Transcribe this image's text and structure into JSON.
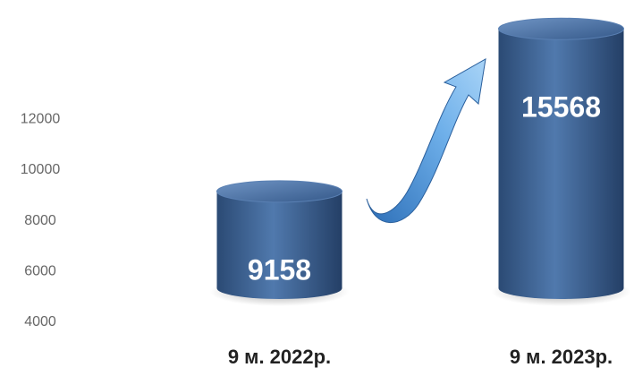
{
  "chart_data": {
    "type": "bar",
    "categories": [
      "9 м. 2022р.",
      "9 м. 2023р."
    ],
    "values": [
      9158,
      15568
    ],
    "color": "#3c6290",
    "ylim": [
      4000,
      16000
    ],
    "yticks": [
      4000,
      6000,
      8000,
      10000,
      12000
    ],
    "grid": false
  }
}
